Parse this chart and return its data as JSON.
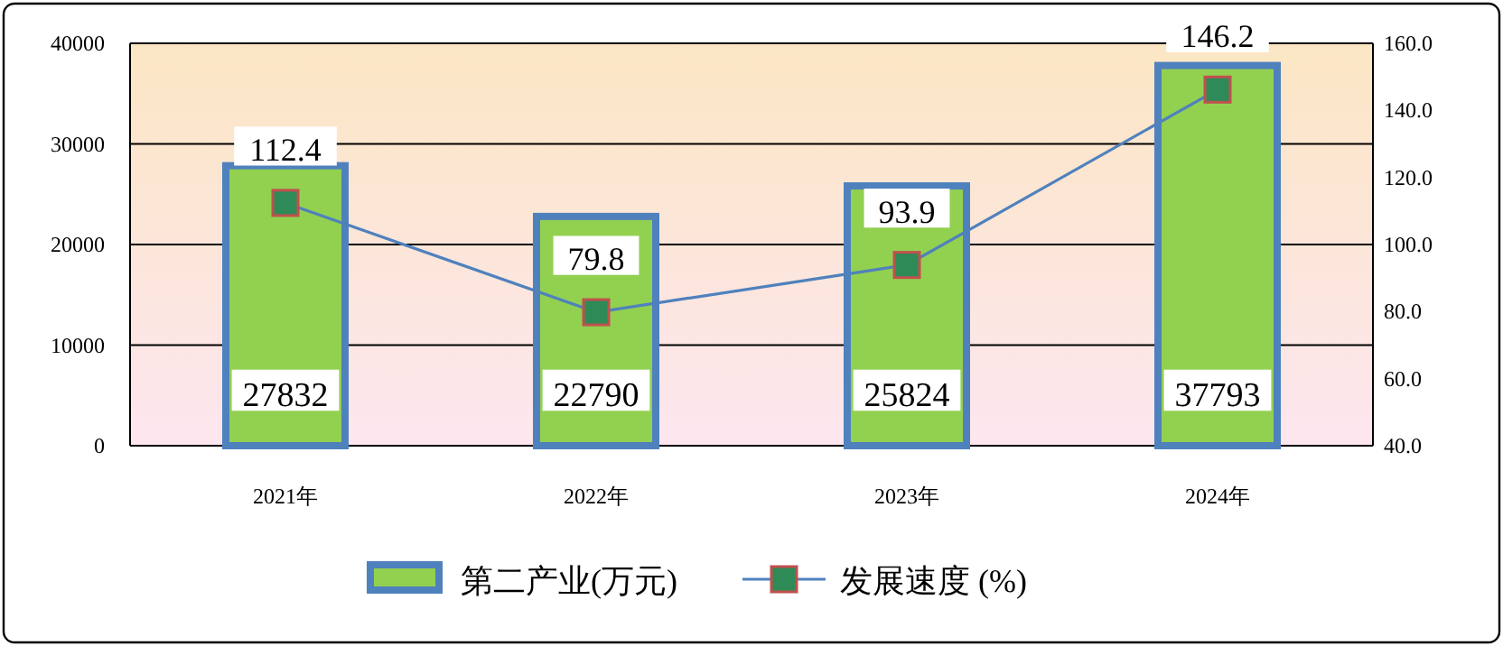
{
  "chart_data": {
    "type": "bar",
    "categories": [
      "2021年",
      "2022年",
      "2023年",
      "2024年"
    ],
    "series": [
      {
        "name": "第二产业(万元)",
        "color": "#92d050",
        "values": [
          27832,
          22790,
          25824,
          37793
        ]
      },
      {
        "name": "发展速度 (%)",
        "type": "line",
        "axis": "y2",
        "color": "#4f81bd",
        "marker": "square",
        "values": [
          112.4,
          79.8,
          93.9,
          146.2
        ]
      }
    ],
    "ylim": [
      0,
      40000
    ],
    "yticks": [
      0,
      10000,
      20000,
      30000,
      40000
    ],
    "y2lim": [
      40,
      160
    ],
    "y2ticks": [
      {
        "value": 40,
        "label": "40.0"
      },
      {
        "value": 60,
        "label": "60.0"
      },
      {
        "value": 80,
        "label": "80.0"
      },
      {
        "value": 100,
        "label": "100.0"
      },
      {
        "value": 120,
        "label": "120.0"
      },
      {
        "value": 140,
        "label": "140.0"
      },
      {
        "value": 160,
        "label": "160.0"
      }
    ],
    "grid": "y",
    "legend": "bottom",
    "data_labels": true
  }
}
